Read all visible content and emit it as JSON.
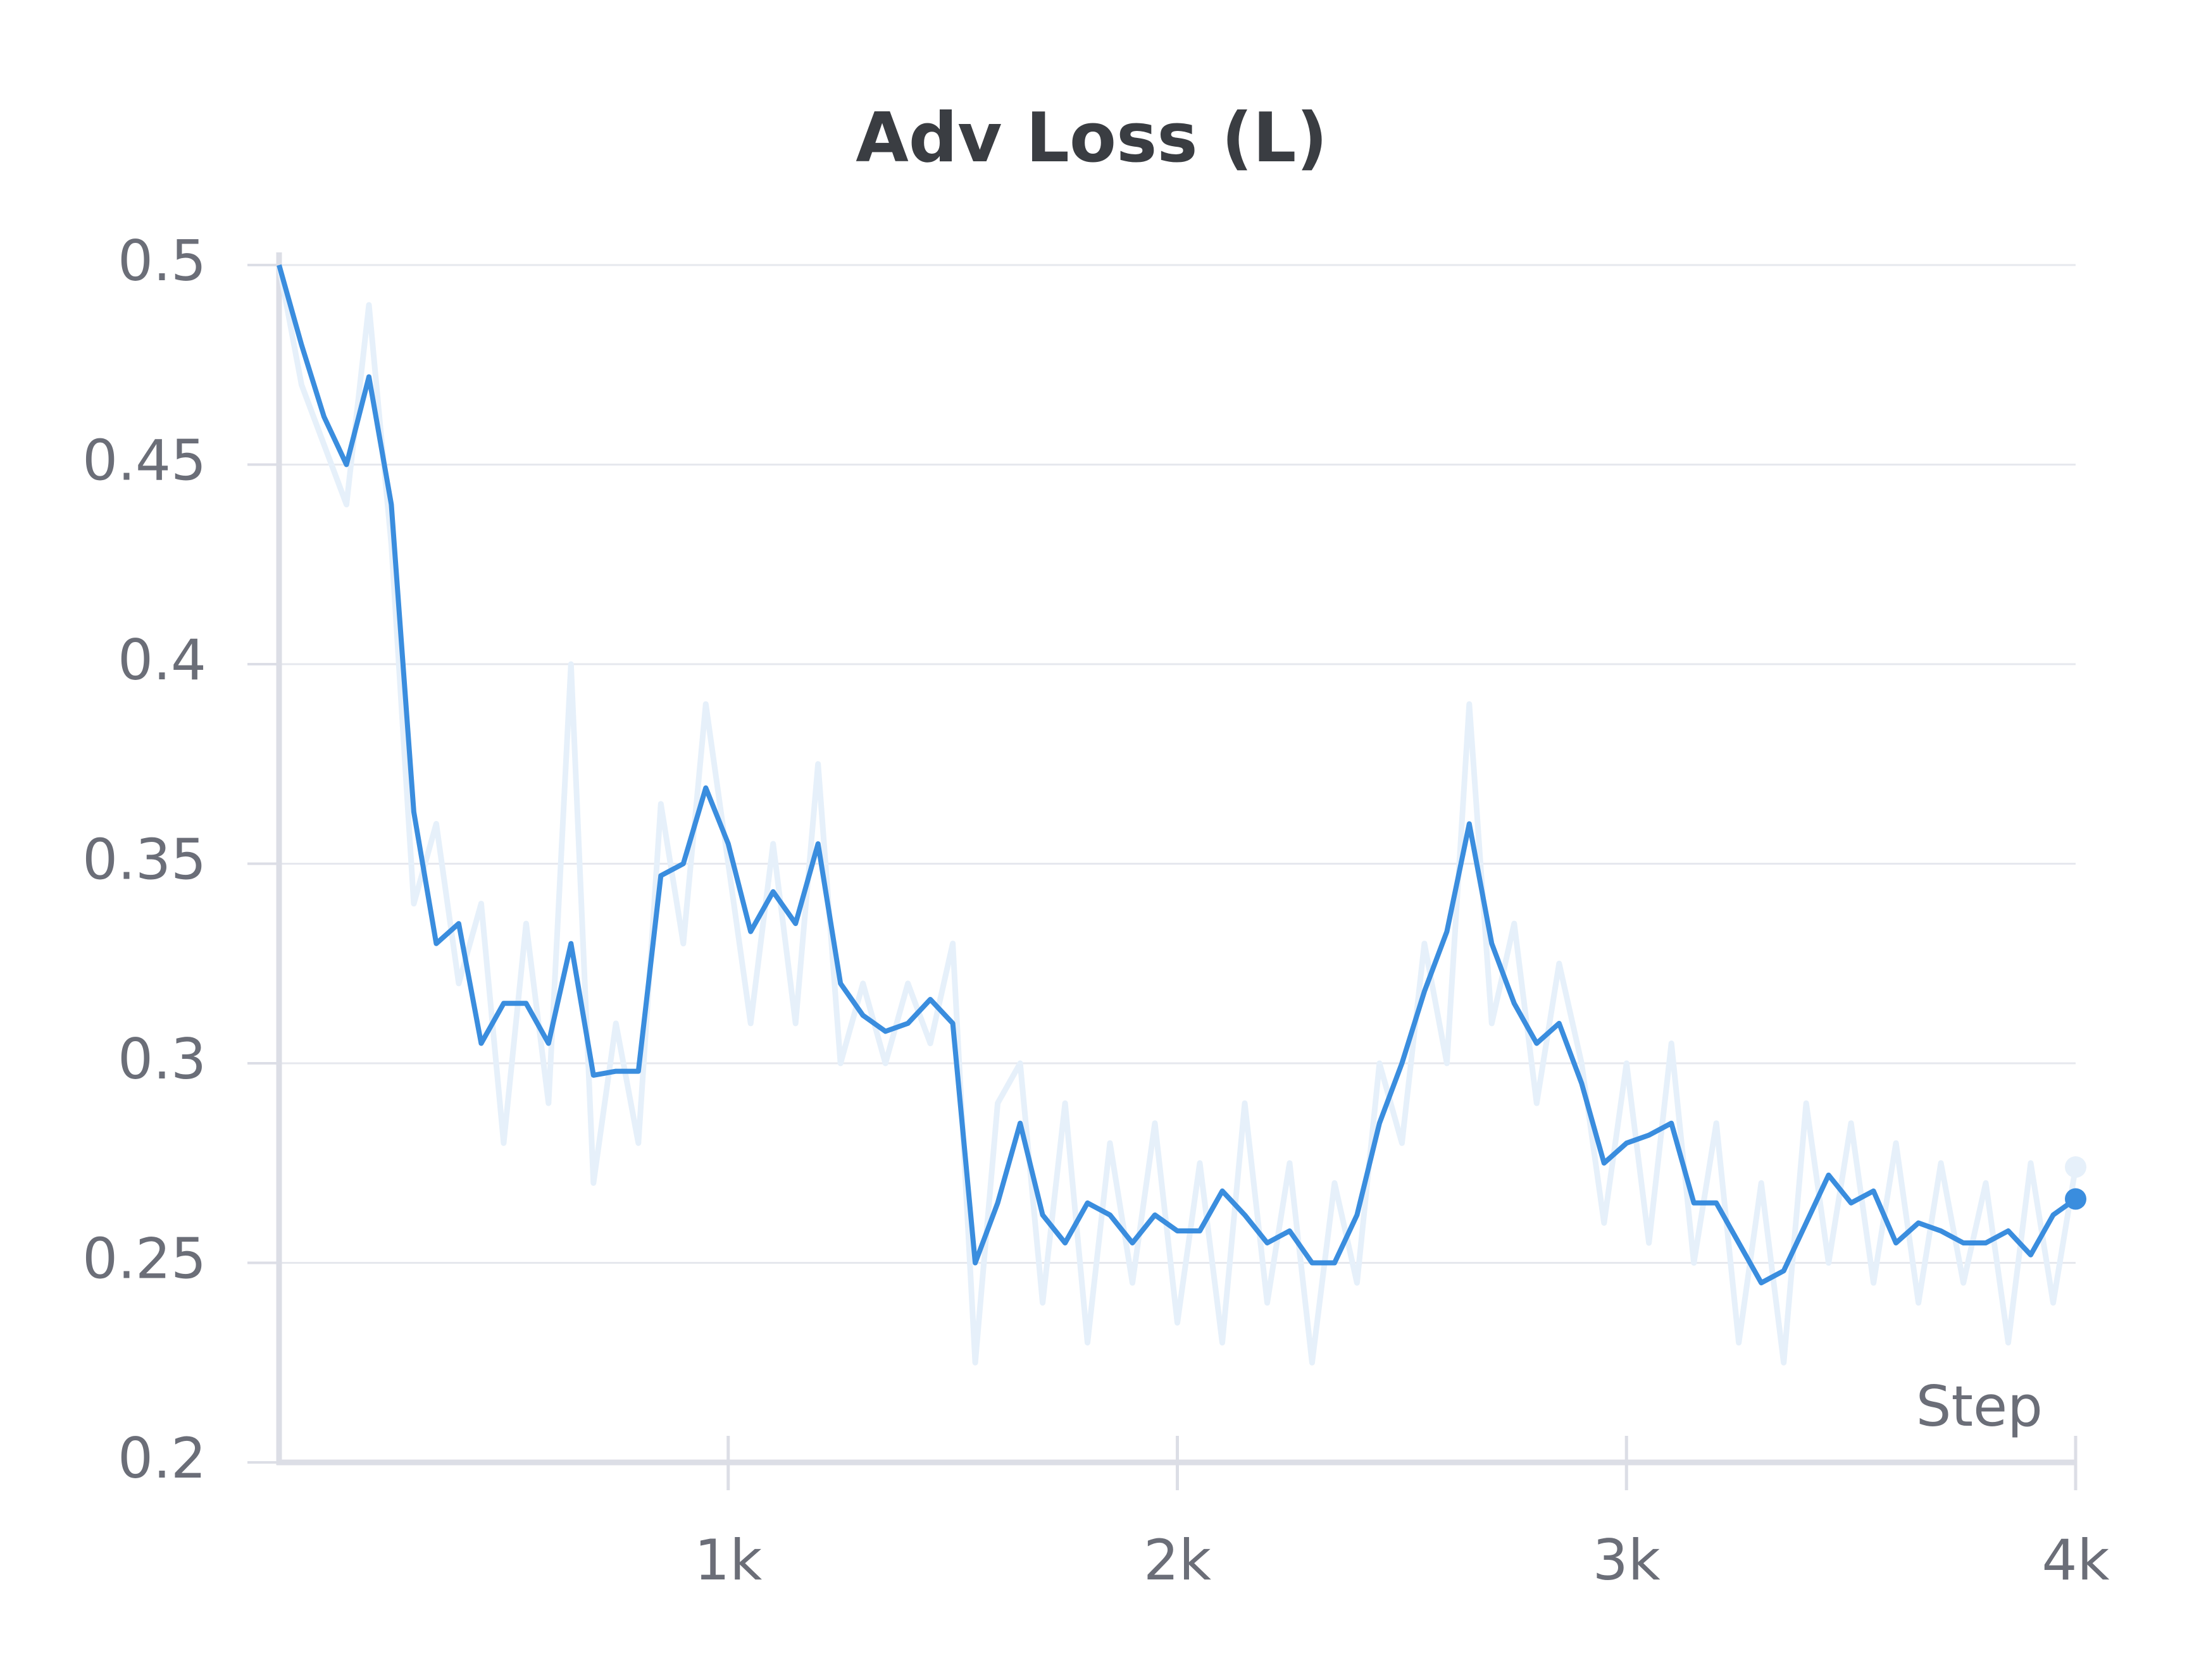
{
  "chart_data": {
    "type": "line",
    "title": "Adv Loss (L)",
    "x_label": "Step",
    "x": [
      0,
      50,
      100,
      150,
      200,
      250,
      300,
      350,
      400,
      450,
      500,
      550,
      600,
      650,
      700,
      750,
      800,
      850,
      900,
      950,
      1000,
      1050,
      1100,
      1150,
      1200,
      1250,
      1300,
      1350,
      1400,
      1450,
      1500,
      1550,
      1600,
      1650,
      1700,
      1750,
      1800,
      1850,
      1900,
      1950,
      2000,
      2050,
      2100,
      2150,
      2200,
      2250,
      2300,
      2350,
      2400,
      2450,
      2500,
      2550,
      2600,
      2650,
      2700,
      2750,
      2800,
      2850,
      2900,
      2950,
      3000,
      3050,
      3100,
      3150,
      3200,
      3250,
      3300,
      3350,
      3400,
      3450,
      3500,
      3550,
      3600,
      3650,
      3700,
      3750,
      3800,
      3850,
      3900,
      3950,
      4000
    ],
    "series": [
      {
        "color": "#e6f0fa",
        "values": [
          0.5,
          0.47,
          0.455,
          0.44,
          0.49,
          0.43,
          0.34,
          0.36,
          0.32,
          0.34,
          0.28,
          0.335,
          0.29,
          0.4,
          0.27,
          0.31,
          0.28,
          0.365,
          0.33,
          0.39,
          0.35,
          0.31,
          0.355,
          0.31,
          0.375,
          0.3,
          0.32,
          0.3,
          0.32,
          0.305,
          0.33,
          0.225,
          0.29,
          0.3,
          0.24,
          0.29,
          0.23,
          0.28,
          0.245,
          0.285,
          0.235,
          0.275,
          0.23,
          0.29,
          0.24,
          0.275,
          0.225,
          0.27,
          0.245,
          0.3,
          0.28,
          0.33,
          0.3,
          0.39,
          0.31,
          0.335,
          0.29,
          0.325,
          0.3,
          0.26,
          0.3,
          0.255,
          0.305,
          0.25,
          0.285,
          0.23,
          0.27,
          0.225,
          0.29,
          0.25,
          0.285,
          0.245,
          0.28,
          0.24,
          0.275,
          0.245,
          0.27,
          0.23,
          0.275,
          0.24,
          0.274
        ]
      },
      {
        "color": "#3a8dde",
        "values": [
          0.5,
          0.48,
          0.462,
          0.45,
          0.472,
          0.44,
          0.363,
          0.33,
          0.335,
          0.305,
          0.315,
          0.315,
          0.305,
          0.33,
          0.297,
          0.298,
          0.298,
          0.347,
          0.35,
          0.369,
          0.355,
          0.333,
          0.343,
          0.335,
          0.355,
          0.32,
          0.312,
          0.308,
          0.31,
          0.316,
          0.31,
          0.25,
          0.265,
          0.285,
          0.262,
          0.255,
          0.265,
          0.262,
          0.255,
          0.262,
          0.258,
          0.258,
          0.268,
          0.262,
          0.255,
          0.258,
          0.25,
          0.25,
          0.262,
          0.285,
          0.3,
          0.318,
          0.333,
          0.36,
          0.33,
          0.315,
          0.305,
          0.31,
          0.295,
          0.275,
          0.28,
          0.282,
          0.285,
          0.265,
          0.265,
          0.255,
          0.245,
          0.248,
          0.26,
          0.272,
          0.265,
          0.268,
          0.255,
          0.26,
          0.258,
          0.255,
          0.255,
          0.258,
          0.252,
          0.262,
          0.266
        ]
      }
    ],
    "xlim": [
      0,
      4000
    ],
    "xticks": [
      {
        "value": 1000,
        "label": "1k"
      },
      {
        "value": 2000,
        "label": "2k"
      },
      {
        "value": 3000,
        "label": "3k"
      },
      {
        "value": 4000,
        "label": "4k"
      }
    ],
    "ylim": [
      0.2,
      0.5
    ],
    "yticks": [
      0.2,
      0.25,
      0.3,
      0.35,
      0.4,
      0.45,
      0.5
    ],
    "grid": true
  }
}
